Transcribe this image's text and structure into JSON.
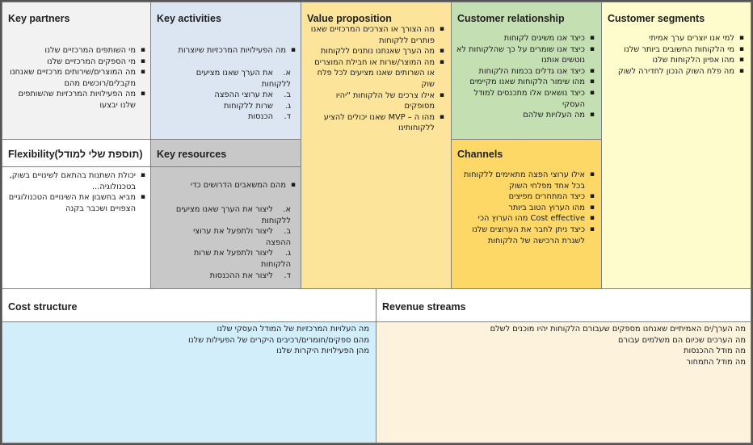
{
  "colors": {
    "key_partners": "#f2f2f2",
    "key_activities": "#dce6f2",
    "key_resources": "#c8c8c8",
    "value_proposition": "#fde49b",
    "customer_relationship": "#c4dfb2",
    "channels": "#fdd866",
    "customer_segments": "#fefccc",
    "flexibility": "#ffffff",
    "cost_structure_header": "#ffffff",
    "cost_structure_body": "#d2eefa",
    "revenue_streams_header": "#ffffff",
    "revenue_streams_body": "#fdf3dd",
    "border": "#7f7f7f"
  },
  "key_partners": {
    "title": "Key partners",
    "items": [
      "מי השותפים המרכזיים שלנו",
      "מי הספקים המרכזיים שלנו",
      "מה המוצרים/שירותים מרכזיים שאנחנו מקבלים/רוכשים מהם",
      "מה הפעילויות המרכזיות שהשותפים שלנו יבצעו"
    ]
  },
  "flexibility": {
    "title": "Flexibility(תוספת שלי למודל)",
    "items": [
      "יכולת השתנות בהתאם לשינויים בשוק, בטכנולוגיה...",
      "מביא בחשבון את השינויים הטכנולוגיים הצפויים ושכבר בקנה"
    ]
  },
  "key_activities": {
    "title": "Key activities",
    "intro": "מה הפעילויות המרכזיות שיוצרות",
    "items": [
      {
        "marker": "א.",
        "text": "את הערך שאנו מציעים ללקוחות"
      },
      {
        "marker": "ב.",
        "text": "את ערוצי ההפצה"
      },
      {
        "marker": "ג.",
        "text": "שרות ללקוחות"
      },
      {
        "marker": "ד.",
        "text": "הכנסות"
      }
    ]
  },
  "key_resources": {
    "title": "Key resources",
    "intro": "מהם המשאבים הדרושים כדי",
    "items": [
      {
        "marker": "א.",
        "text": "ליצור את הערך שאנו מציעים ללקוחות"
      },
      {
        "marker": "ב.",
        "text": "ליצור ולתפעל את ערוצי ההפצה"
      },
      {
        "marker": "ג.",
        "text": "ליצור ולתפעל את שרות הלקוחות"
      },
      {
        "marker": "ד.",
        "text": "ליצור את ההכנסות"
      }
    ]
  },
  "value_proposition": {
    "title": "Value proposition",
    "items": [
      "מה הצורך או הצרכים המרכזיים שאנו פותרים ללקוחות",
      "מה הערך שאנחנו נותנים ללקוחות",
      "מה המוצר/שרות או חבילת המוצרים או השרותים שאנו מציעים לכל פלח שוק",
      "אילו צרכים של הלקוחות \"יהיו מסופקים",
      "מהו ה – MVP שאנו יכולים להציע ללקוחותינו"
    ]
  },
  "customer_relationship": {
    "title": "Customer relationship",
    "items": [
      "כיצד אנו משיגים לקוחות",
      "כיצד אנו שומרים על כך שהלקוחות לא נוטשים אותנו",
      "כיצד אנו גדלים בכמות הלקוחות",
      "מהו שימור הלקוחות שאנו מקיימים",
      "כיצד נושאים אלו מתכנסים למודל העסקי",
      "מה העלויות שלהם"
    ]
  },
  "channels": {
    "title": "Channels",
    "items": [
      "אילו ערוצי הפצה מתאימים ללקוחות בכל אחד מפלחי השוק",
      "כיצד המתחרים מפיצים",
      "מהו הערוץ הטוב ביותר",
      "Cost effective מהו הערוץ הכי",
      "כיצד ניתן לחבר את הערוצים שלנו לשגרת הרכישה של הלקוחות"
    ]
  },
  "customer_segments": {
    "title": "Customer segments",
    "items": [
      "למי אנו יוצרים ערך אמיתי",
      "מי הלקוחות החשובים ביותר שלנו",
      "מהו אפיון הלקוחות שלנו",
      "מה פלח השוק הנכון לחדירה לשוק"
    ]
  },
  "cost_structure": {
    "title": "Cost structure",
    "lines": [
      "מה העלויות המרכזיות של המודל העסקי שלנו",
      "מהם ספקים/חומרים/רכיבים היקרים של הפעילות שלנו",
      "מהן הפעילויות היקרות שלנו"
    ]
  },
  "revenue_streams": {
    "title": "Revenue streams",
    "lines": [
      "מה הערך/ים האמיתיים שאנחנו מספקים שעבורם הלקוחות יהיו מוכנים לשלם",
      "מה הערכים שכיום הם משלמים עבורם",
      "מה מודל ההכנסות",
      "מה מודל התמחור"
    ]
  }
}
